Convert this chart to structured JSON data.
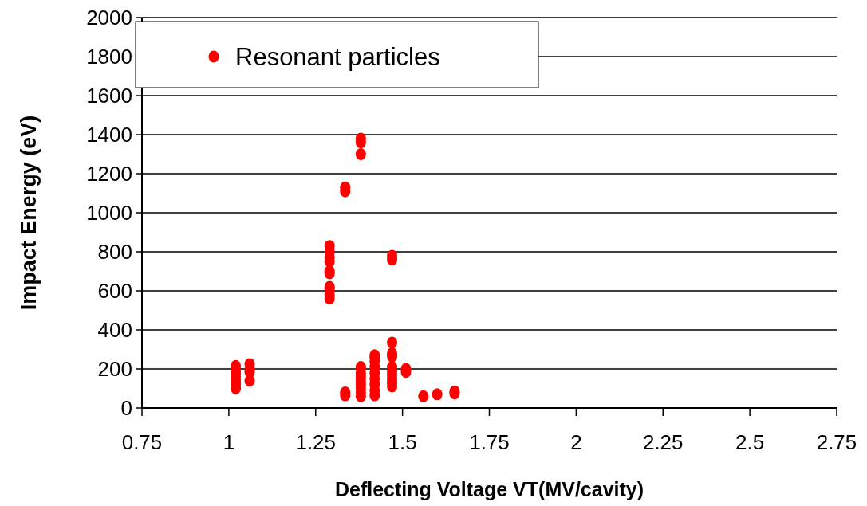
{
  "chart_data": {
    "type": "scatter",
    "xlabel": "Deflecting Voltage VT(MV/cavity)",
    "ylabel": "Impact Energy (eV)",
    "xlim": [
      0.75,
      2.75
    ],
    "xticks": [
      {
        "value": 0.75,
        "label": "0.75"
      },
      1,
      1.25,
      1.5,
      1.75,
      2,
      2.25,
      2.5,
      2.75
    ],
    "ylim": [
      0,
      2000
    ],
    "yticks": [
      0,
      200,
      400,
      600,
      800,
      1000,
      1200,
      1400,
      1600,
      1800,
      2000
    ],
    "grid": "y",
    "legend": "top left",
    "marker": "circle",
    "series": [
      {
        "name": "Resonant particles",
        "color": "#ff0000",
        "x": [
          1.02,
          1.02,
          1.02,
          1.02,
          1.02,
          1.02,
          1.02,
          1.06,
          1.06,
          1.06,
          1.06,
          1.29,
          1.29,
          1.29,
          1.29,
          1.29,
          1.29,
          1.29,
          1.29,
          1.29,
          1.29,
          1.335,
          1.335,
          1.335,
          1.335,
          1.38,
          1.38,
          1.38,
          1.38,
          1.38,
          1.38,
          1.38,
          1.38,
          1.38,
          1.38,
          1.38,
          1.42,
          1.42,
          1.42,
          1.42,
          1.42,
          1.42,
          1.42,
          1.42,
          1.42,
          1.47,
          1.47,
          1.47,
          1.47,
          1.47,
          1.47,
          1.47,
          1.47,
          1.47,
          1.47,
          1.47,
          1.51,
          1.51,
          1.56,
          1.6,
          1.65,
          1.65
        ],
        "values": [
          100,
          120,
          140,
          160,
          180,
          200,
          215,
          140,
          185,
          200,
          225,
          560,
          580,
          610,
          620,
          690,
          700,
          750,
          770,
          800,
          830,
          1110,
          1130,
          65,
          80,
          1300,
          1360,
          1380,
          60,
          80,
          100,
          120,
          140,
          160,
          180,
          210,
          65,
          90,
          120,
          150,
          180,
          210,
          240,
          260,
          270,
          760,
          780,
          110,
          130,
          150,
          170,
          190,
          210,
          265,
          280,
          335,
          185,
          200,
          60,
          70,
          75,
          85
        ]
      }
    ]
  }
}
